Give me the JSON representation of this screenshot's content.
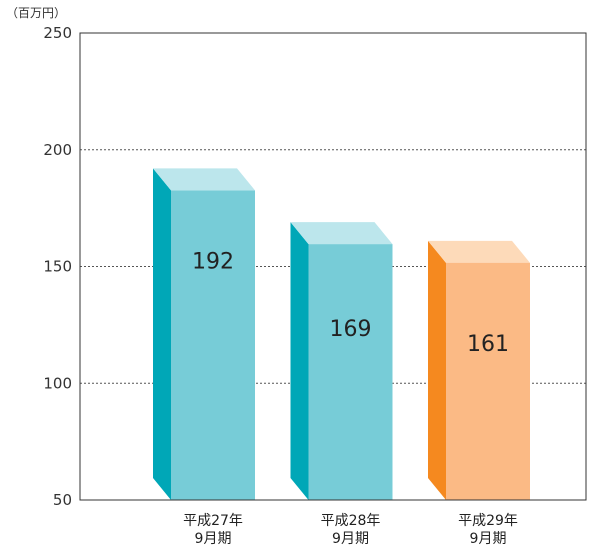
{
  "chart_data": {
    "type": "bar",
    "ylabel": "（百万円）",
    "categories": [
      [
        "平成27年",
        "9月期"
      ],
      [
        "平成28年",
        "9月期"
      ],
      [
        "平成29年",
        "9月期"
      ]
    ],
    "values": [
      192,
      169,
      161
    ],
    "ylim": [
      50,
      250
    ],
    "yticks": [
      50,
      100,
      150,
      200,
      250
    ],
    "grid": true,
    "bar_colors": [
      {
        "front": "#77ccd7",
        "side": "#00a7b7",
        "top": "#bce6ec"
      },
      {
        "front": "#77ccd7",
        "side": "#00a7b7",
        "top": "#bce6ec"
      },
      {
        "front": "#fbba85",
        "side": "#f5891f",
        "top": "#fddab9"
      }
    ],
    "frame_color": "#333333",
    "grid_color": "#555555"
  }
}
